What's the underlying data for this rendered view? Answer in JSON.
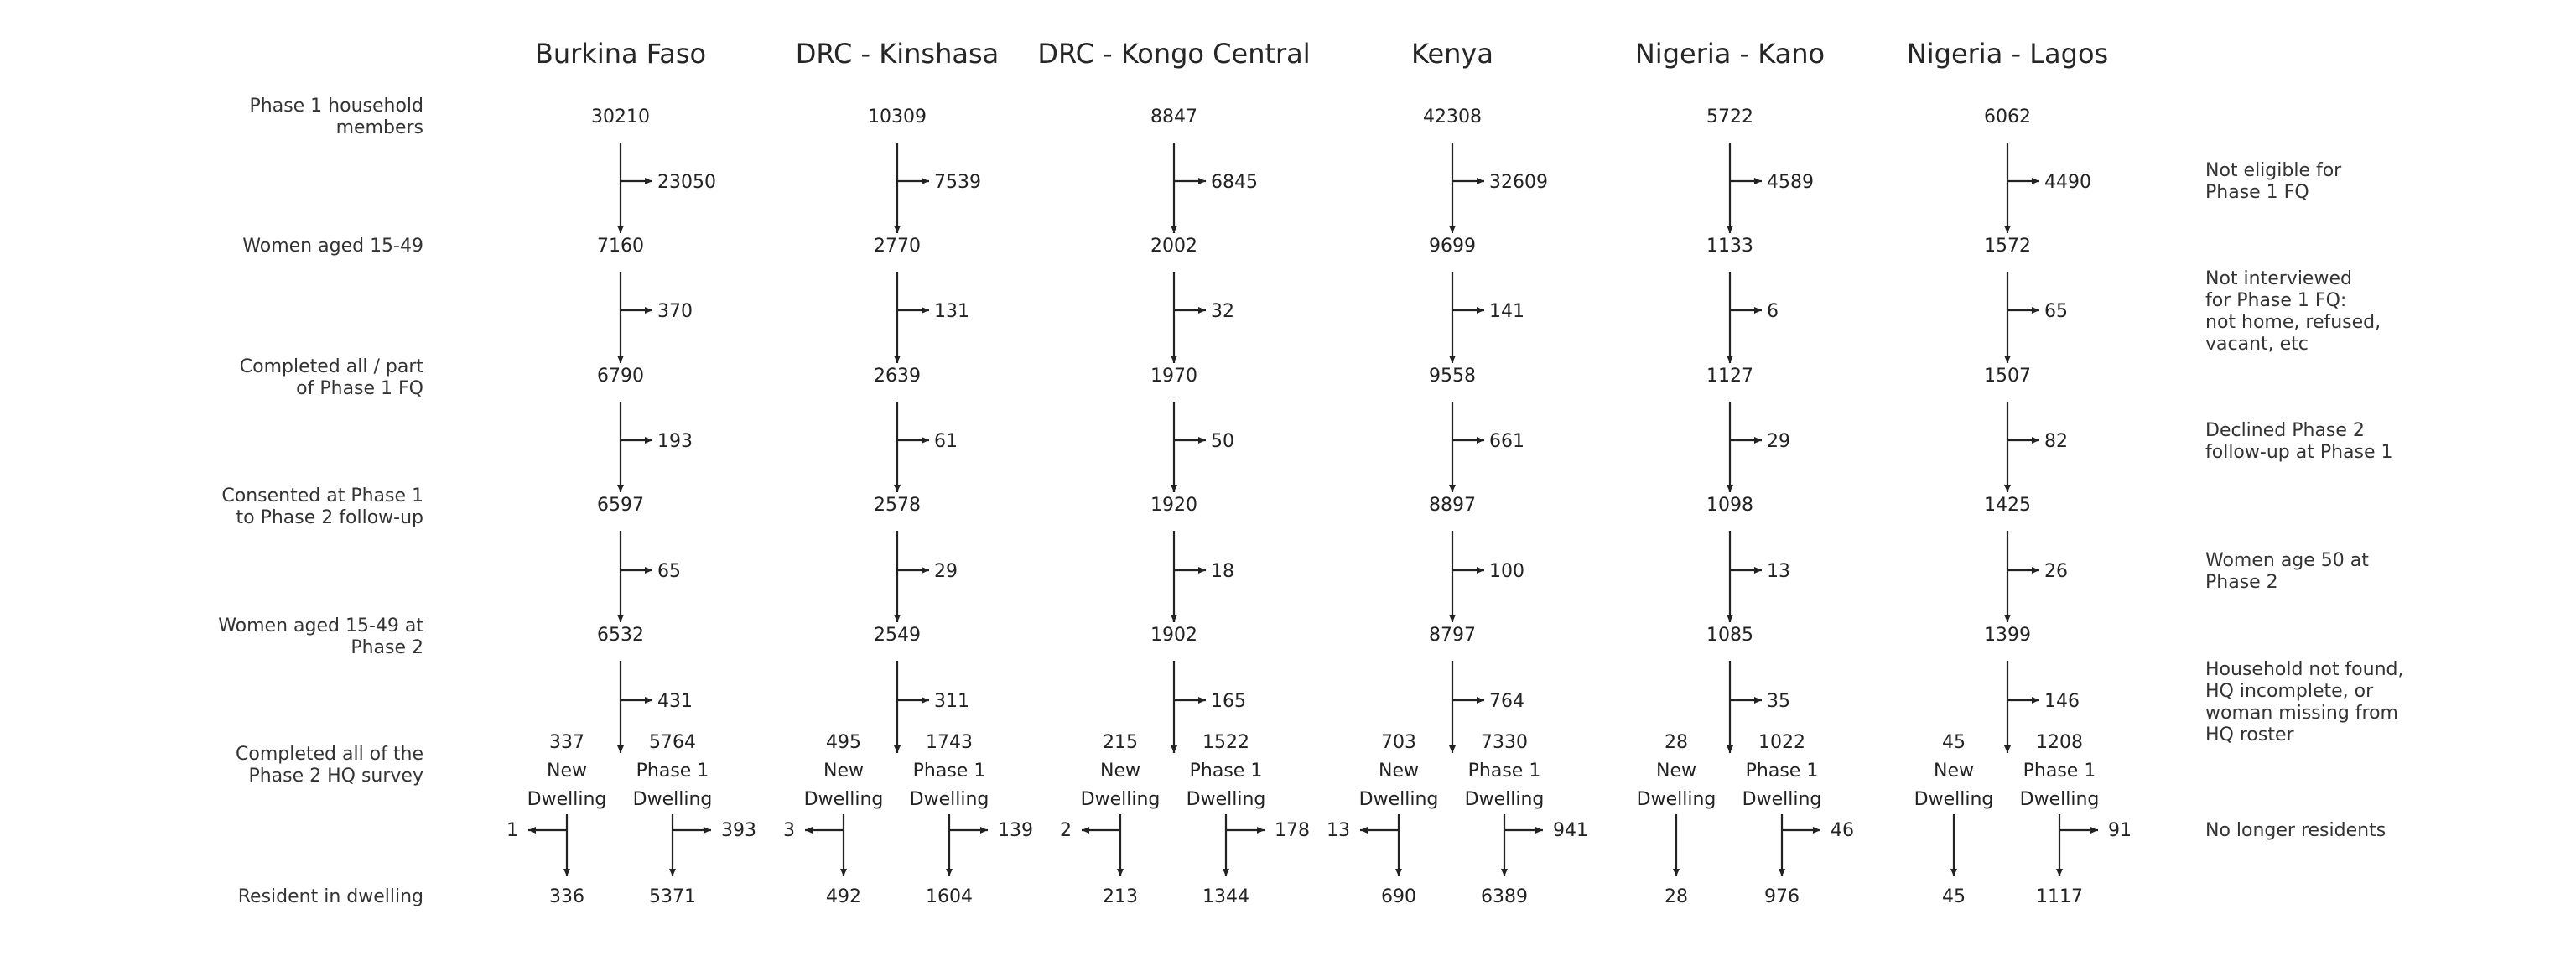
{
  "columns": [
    {
      "name": "Burkina Faso",
      "values": [
        "30210",
        "7160",
        "6790",
        "6597",
        "6532"
      ],
      "exclusions": [
        "23050",
        "370",
        "193",
        "65",
        "431"
      ],
      "new_dwelling": {
        "count": "337",
        "label": [
          "New",
          "Dwelling"
        ],
        "left": "1",
        "final": "336"
      },
      "phase1_dwelling": {
        "count": "5764",
        "label": [
          "Phase 1",
          "Dwelling"
        ],
        "right": "393",
        "final": "5371"
      }
    },
    {
      "name": "DRC - Kinshasa",
      "values": [
        "10309",
        "2770",
        "2639",
        "2578",
        "2549"
      ],
      "exclusions": [
        "7539",
        "131",
        "61",
        "29",
        "311"
      ],
      "new_dwelling": {
        "count": "495",
        "label": [
          "New",
          "Dwelling"
        ],
        "left": "3",
        "final": "492"
      },
      "phase1_dwelling": {
        "count": "1743",
        "label": [
          "Phase 1",
          "Dwelling"
        ],
        "right": "139",
        "final": "1604"
      }
    },
    {
      "name": "DRC - Kongo Central",
      "values": [
        "8847",
        "2002",
        "1970",
        "1920",
        "1902"
      ],
      "exclusions": [
        "6845",
        "32",
        "50",
        "18",
        "165"
      ],
      "new_dwelling": {
        "count": "215",
        "label": [
          "New",
          "Dwelling"
        ],
        "left": "2",
        "final": "213"
      },
      "phase1_dwelling": {
        "count": "1522",
        "label": [
          "Phase 1",
          "Dwelling"
        ],
        "right": "178",
        "final": "1344"
      }
    },
    {
      "name": "Kenya",
      "values": [
        "42308",
        "9699",
        "9558",
        "8897",
        "8797"
      ],
      "exclusions": [
        "32609",
        "141",
        "661",
        "100",
        "764"
      ],
      "new_dwelling": {
        "count": "703",
        "label": [
          "New",
          "Dwelling"
        ],
        "left": "13",
        "final": "690"
      },
      "phase1_dwelling": {
        "count": "7330",
        "label": [
          "Phase 1",
          "Dwelling"
        ],
        "right": "941",
        "final": "6389"
      }
    },
    {
      "name": "Nigeria - Kano",
      "values": [
        "5722",
        "1133",
        "1127",
        "1098",
        "1085"
      ],
      "exclusions": [
        "4589",
        "6",
        "29",
        "13",
        "35"
      ],
      "new_dwelling": {
        "count": "28",
        "label": [
          "New",
          "Dwelling"
        ],
        "left": "",
        "final": "28"
      },
      "phase1_dwelling": {
        "count": "1022",
        "label": [
          "Phase 1",
          "Dwelling"
        ],
        "right": "46",
        "final": "976"
      }
    },
    {
      "name": "Nigeria - Lagos",
      "values": [
        "6062",
        "1572",
        "1507",
        "1425",
        "1399"
      ],
      "exclusions": [
        "4490",
        "65",
        "82",
        "26",
        "146"
      ],
      "new_dwelling": {
        "count": "45",
        "label": [
          "New",
          "Dwelling"
        ],
        "left": "",
        "final": "45"
      },
      "phase1_dwelling": {
        "count": "1208",
        "label": [
          "Phase 1",
          "Dwelling"
        ],
        "right": "91",
        "final": "1117"
      }
    }
  ],
  "stage_labels": [
    [
      "Phase 1 household",
      "members"
    ],
    [
      "Women aged 15-49"
    ],
    [
      "Completed all / part",
      "of Phase 1 FQ"
    ],
    [
      "Consented at Phase 1",
      "to Phase 2 follow-up"
    ],
    [
      "Women aged 15-49 at",
      "Phase 2"
    ],
    [
      "Completed all of the",
      "Phase 2 HQ survey"
    ],
    [
      "Resident in dwelling"
    ]
  ],
  "exclusion_labels": [
    [
      "Not eligible for",
      "Phase 1 FQ"
    ],
    [
      "Not interviewed",
      "for Phase 1 FQ:",
      "not home, refused,",
      "vacant, etc"
    ],
    [
      "Declined Phase 2",
      "follow-up at Phase 1"
    ],
    [
      "Women age 50 at",
      "Phase 2"
    ],
    [
      "Household not found,",
      "HQ incomplete, or",
      "woman missing from",
      "HQ roster"
    ],
    [
      "No longer residents"
    ]
  ]
}
